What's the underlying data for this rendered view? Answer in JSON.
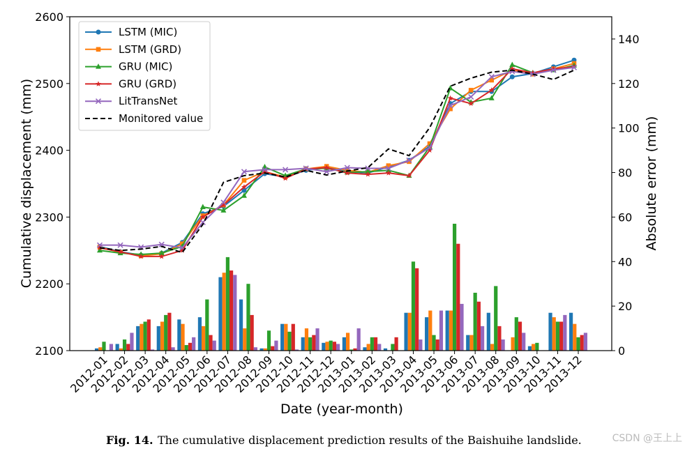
{
  "chart_data": {
    "type": "line",
    "xlabel": "Date (year-month)",
    "ylabel": "Cumulative displacement (mm)",
    "y2label": "Absolute error (mm)",
    "categories": [
      "2012-01",
      "2012-02",
      "2012-03",
      "2012-04",
      "2012-05",
      "2012-06",
      "2012-07",
      "2012-08",
      "2012-09",
      "2012-10",
      "2012-11",
      "2012-12",
      "2013-01",
      "2013-02",
      "2013-03",
      "2013-04",
      "2013-05",
      "2013-06",
      "2013-07",
      "2013-08",
      "2013-09",
      "2013-10",
      "2013-11",
      "2013-12"
    ],
    "ylim": [
      2100,
      2600
    ],
    "yticks": [
      2100,
      2200,
      2300,
      2400,
      2500,
      2600
    ],
    "y2lim": [
      0,
      150
    ],
    "y2ticks": [
      0,
      20,
      40,
      60,
      80,
      100,
      120,
      140
    ],
    "legend": "upper left",
    "series": [
      {
        "name": "LSTM (MIC)",
        "color": "#1f77b4",
        "marker": "circle",
        "values": [
          2256,
          2248,
          2243,
          2246,
          2262,
          2305,
          2316,
          2340,
          2365,
          2360,
          2370,
          2374,
          2368,
          2366,
          2375,
          2385,
          2406,
          2470,
          2488,
          2488,
          2510,
          2515,
          2525,
          2535
        ],
        "errors": [
          1,
          3,
          11,
          11,
          14,
          15,
          33,
          23,
          1,
          12,
          6,
          3.5,
          6,
          1.5,
          1,
          17,
          15,
          18,
          7,
          17,
          0,
          2,
          17,
          17
        ]
      },
      {
        "name": "LSTM (GRD)",
        "color": "#ff7f0e",
        "marker": "square",
        "values": [
          2255,
          2247,
          2242,
          2245,
          2260,
          2302,
          2318,
          2355,
          2368,
          2360,
          2372,
          2376,
          2370,
          2367,
          2377,
          2383,
          2410,
          2462,
          2490,
          2505,
          2520,
          2514,
          2522,
          2530
        ],
        "errors": [
          1.5,
          1,
          12,
          13,
          12,
          11,
          35,
          10,
          1,
          12,
          10,
          4,
          8,
          3,
          0,
          17,
          18,
          18,
          7,
          3,
          6,
          3,
          15,
          12
        ]
      },
      {
        "name": "GRU (MIC)",
        "color": "#2ca02c",
        "marker": "triangle",
        "values": [
          2250,
          2246,
          2244,
          2246,
          2256,
          2315,
          2310,
          2332,
          2375,
          2362,
          2372,
          2373,
          2367,
          2368,
          2370,
          2362,
          2405,
          2493,
          2472,
          2478,
          2528,
          2516,
          2520,
          2527
        ],
        "errors": [
          4,
          5,
          13,
          16,
          2.5,
          23,
          42,
          30,
          9,
          8.5,
          6,
          4.5,
          0.5,
          6,
          3,
          40,
          7,
          57,
          26,
          29,
          15,
          3.5,
          13,
          6
        ]
      },
      {
        "name": "GRU (GRD)",
        "color": "#d62728",
        "marker": "star",
        "values": [
          2254,
          2248,
          2241,
          2241,
          2250,
          2300,
          2318,
          2345,
          2368,
          2358,
          2372,
          2374,
          2366,
          2364,
          2366,
          2362,
          2400,
          2478,
          2470,
          2490,
          2522,
          2516,
          2522,
          2525
        ],
        "errors": [
          0,
          3,
          14,
          17,
          3.5,
          7,
          36,
          16,
          2,
          12,
          7,
          4,
          1,
          6,
          6,
          37,
          5,
          48,
          22,
          11,
          13,
          0,
          13,
          7
        ]
      },
      {
        "name": "LitTransNet",
        "color": "#9467bd",
        "marker": "x",
        "values": [
          2258,
          2258,
          2255,
          2259,
          2254,
          2292,
          2322,
          2368,
          2371,
          2371,
          2373,
          2368,
          2374,
          2373,
          2373,
          2385,
          2404,
          2467,
          2480,
          2510,
          2518,
          2514,
          2520,
          2524
        ],
        "errors": [
          3,
          8,
          0.5,
          1.5,
          6,
          4.5,
          34,
          1.5,
          4.5,
          0.5,
          10,
          3,
          10,
          3,
          0.1,
          5,
          18,
          21,
          11,
          5,
          8,
          0,
          16,
          8
        ]
      },
      {
        "name": "Monitored value",
        "color": "#000000",
        "dashed": true,
        "values": [
          2254,
          2250,
          2252,
          2256,
          2247,
          2289,
          2352,
          2362,
          2366,
          2360,
          2370,
          2363,
          2369,
          2374,
          2402,
          2392,
          2434,
          2496,
          2508,
          2517,
          2520,
          2514,
          2506,
          2520
        ]
      }
    ]
  },
  "caption": {
    "label": "Fig. 14.",
    "text": "The cumulative displacement prediction results of the Baishuihe landslide."
  },
  "watermark": "CSDN @王上上"
}
